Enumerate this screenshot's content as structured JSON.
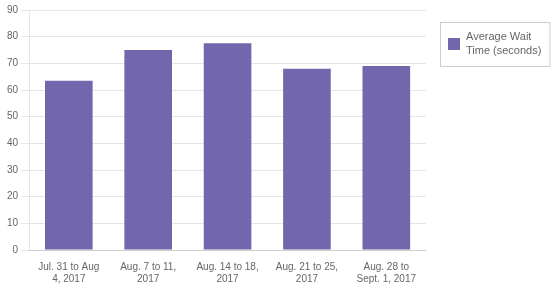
{
  "chart_data": {
    "type": "bar",
    "categories": [
      "Jul. 31 to Aug\n4, 2017",
      "Aug. 7 to 11,\n2017",
      "Aug. 14 to 18,\n2017",
      "Aug. 21 to 25,\n2017",
      "Aug. 28 to\nSept. 1, 2017"
    ],
    "series": [
      {
        "name": "Average Wait\nTime (seconds)",
        "color": "#7267AC",
        "values": [
          63.5,
          75.0,
          77.5,
          68.0,
          69.0
        ]
      }
    ],
    "ylim": [
      0,
      90
    ],
    "yticks": [
      0,
      10,
      20,
      30,
      40,
      50,
      60,
      70,
      80,
      90
    ],
    "grid": true,
    "legend": "right"
  }
}
